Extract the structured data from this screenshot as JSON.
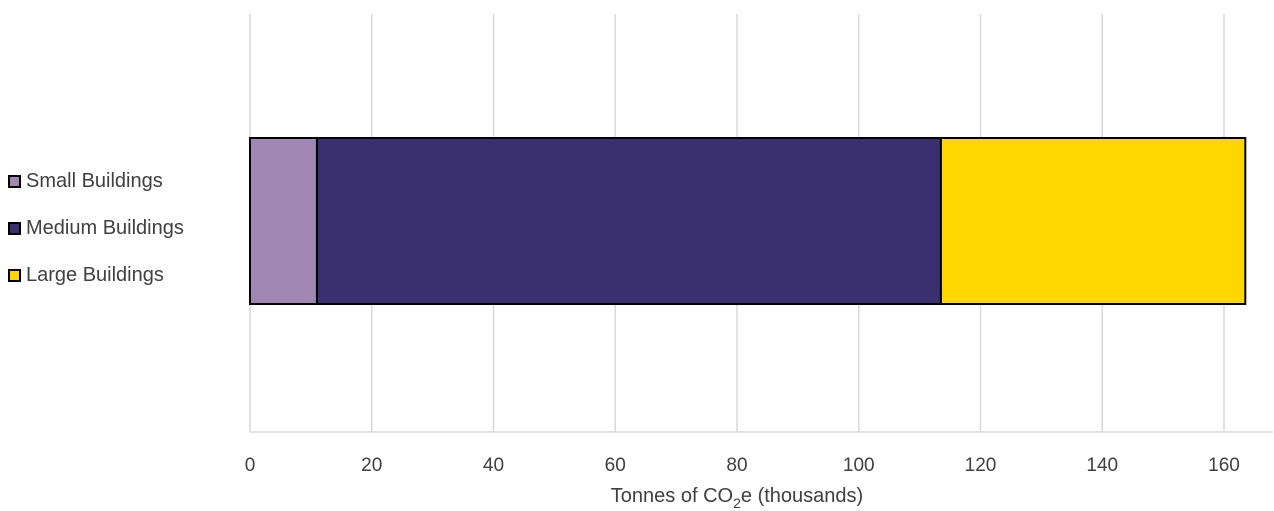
{
  "chart_data": {
    "type": "bar",
    "orientation": "horizontal",
    "stacked": true,
    "categories": [
      ""
    ],
    "series": [
      {
        "name": "Small Buildings",
        "values": [
          11
        ],
        "color": "#a086b3"
      },
      {
        "name": "Medium Buildings",
        "values": [
          102.5
        ],
        "color": "#3a2f6f"
      },
      {
        "name": "Large Buildings",
        "values": [
          50
        ],
        "color": "#ffd700"
      }
    ],
    "xlabel": {
      "prefix": "Tonnes of CO",
      "subscript": "2",
      "suffix": "e (thousands)"
    },
    "xlim": [
      0,
      165
    ],
    "xticks": [
      "0",
      "20",
      "40",
      "60",
      "80",
      "100",
      "120",
      "140",
      "160"
    ],
    "grid": "vertical",
    "legend_position": "left"
  }
}
